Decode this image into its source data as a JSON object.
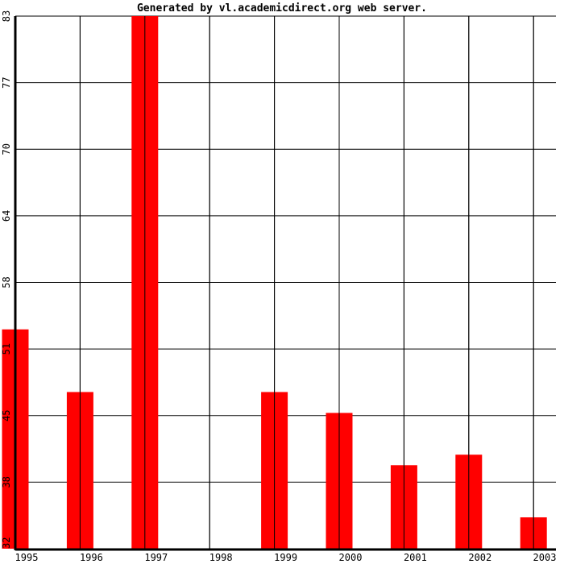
{
  "chart_data": {
    "type": "bar",
    "title": "Generated by vl.academicdirect.org web server.",
    "categories": [
      "1995",
      "1996",
      "1997",
      "1998",
      "1999",
      "2000",
      "2001",
      "2002",
      "2003"
    ],
    "values": [
      53,
      47,
      83,
      null,
      47,
      45,
      40,
      41,
      35
    ],
    "ylim": [
      32,
      83
    ],
    "yticks": [
      "32",
      "38",
      "45",
      "51",
      "58",
      "64",
      "70",
      "77",
      "83"
    ],
    "xlabel": "",
    "ylabel": "",
    "grid": true,
    "bar_color": "#ff0000"
  }
}
